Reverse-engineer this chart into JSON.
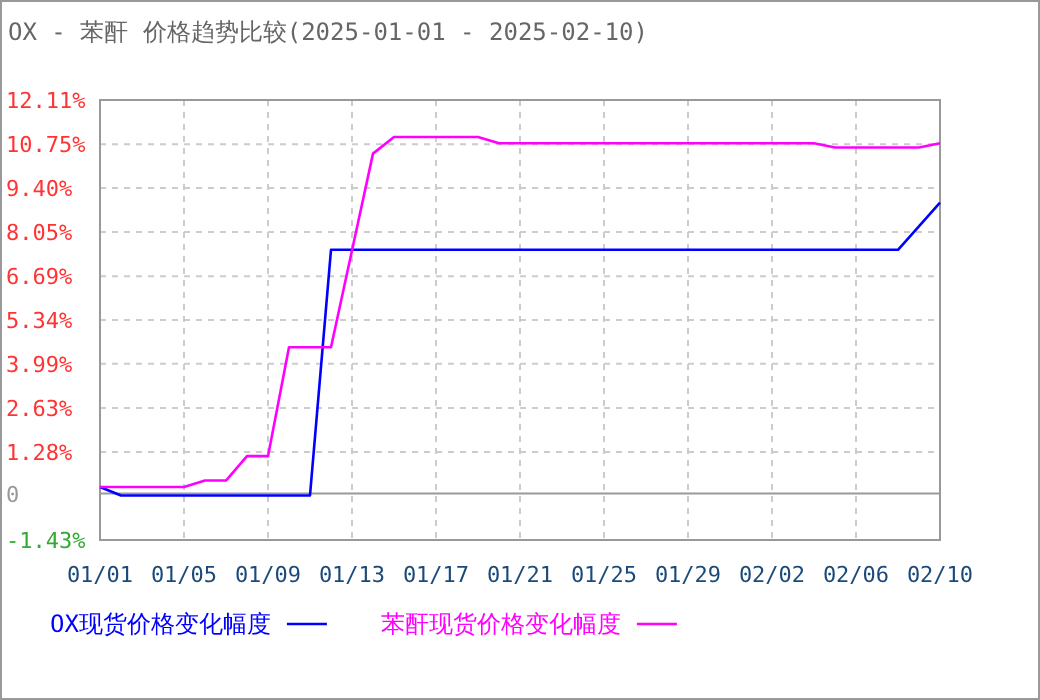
{
  "chart_data": {
    "type": "line",
    "title": "OX - 苯酐 价格趋势比较(2025-01-01 - 2025-02-10)",
    "series": [
      {
        "name": "OX现货价格变化幅度",
        "color": "#0000ff",
        "x": [
          "2025-01-01",
          "2025-01-02",
          "2025-01-11",
          "2025-01-12",
          "2025-02-08",
          "2025-02-10"
        ],
        "values": [
          0.2,
          -0.06,
          -0.06,
          7.5,
          7.5,
          8.95
        ]
      },
      {
        "name": "苯酐现货价格变化幅度",
        "color": "#ff00ff",
        "x": [
          "2025-01-01",
          "2025-01-05",
          "2025-01-06",
          "2025-01-07",
          "2025-01-08",
          "2025-01-09",
          "2025-01-10",
          "2025-01-12",
          "2025-01-14",
          "2025-01-15",
          "2025-01-19",
          "2025-01-20",
          "2025-02-04",
          "2025-02-05",
          "2025-02-09",
          "2025-02-10"
        ],
        "values": [
          0.2,
          0.2,
          0.4,
          0.4,
          1.15,
          1.15,
          4.5,
          4.5,
          10.46,
          10.97,
          10.97,
          10.78,
          10.78,
          10.65,
          10.65,
          10.78
        ]
      }
    ],
    "xlim": [
      "2025-01-01",
      "2025-02-10"
    ],
    "xticks": [
      {
        "value": "2025-01-01",
        "label": "01/01"
      },
      {
        "value": "2025-01-05",
        "label": "01/05"
      },
      {
        "value": "2025-01-09",
        "label": "01/09"
      },
      {
        "value": "2025-01-13",
        "label": "01/13"
      },
      {
        "value": "2025-01-17",
        "label": "01/17"
      },
      {
        "value": "2025-01-21",
        "label": "01/21"
      },
      {
        "value": "2025-01-25",
        "label": "01/25"
      },
      {
        "value": "2025-01-29",
        "label": "01/29"
      },
      {
        "value": "2025-02-02",
        "label": "02/02"
      },
      {
        "value": "2025-02-06",
        "label": "02/06"
      },
      {
        "value": "2025-02-10",
        "label": "02/10"
      }
    ],
    "ylim": [
      -1.43,
      12.11
    ],
    "yticks": [
      {
        "value": -1.43,
        "label": "-1.43%"
      },
      {
        "value": 0,
        "label": "0"
      },
      {
        "value": 1.28,
        "label": "1.28%"
      },
      {
        "value": 2.63,
        "label": "2.63%"
      },
      {
        "value": 3.99,
        "label": "3.99%"
      },
      {
        "value": 5.34,
        "label": "5.34%"
      },
      {
        "value": 6.69,
        "label": "6.69%"
      },
      {
        "value": 8.05,
        "label": "8.05%"
      },
      {
        "value": 9.4,
        "label": "9.40%"
      },
      {
        "value": 10.75,
        "label": "10.75%"
      },
      {
        "value": 12.11,
        "label": "12.11%"
      }
    ],
    "grid": true,
    "legend": "bottom",
    "marker": "none",
    "line_style": "solid"
  }
}
